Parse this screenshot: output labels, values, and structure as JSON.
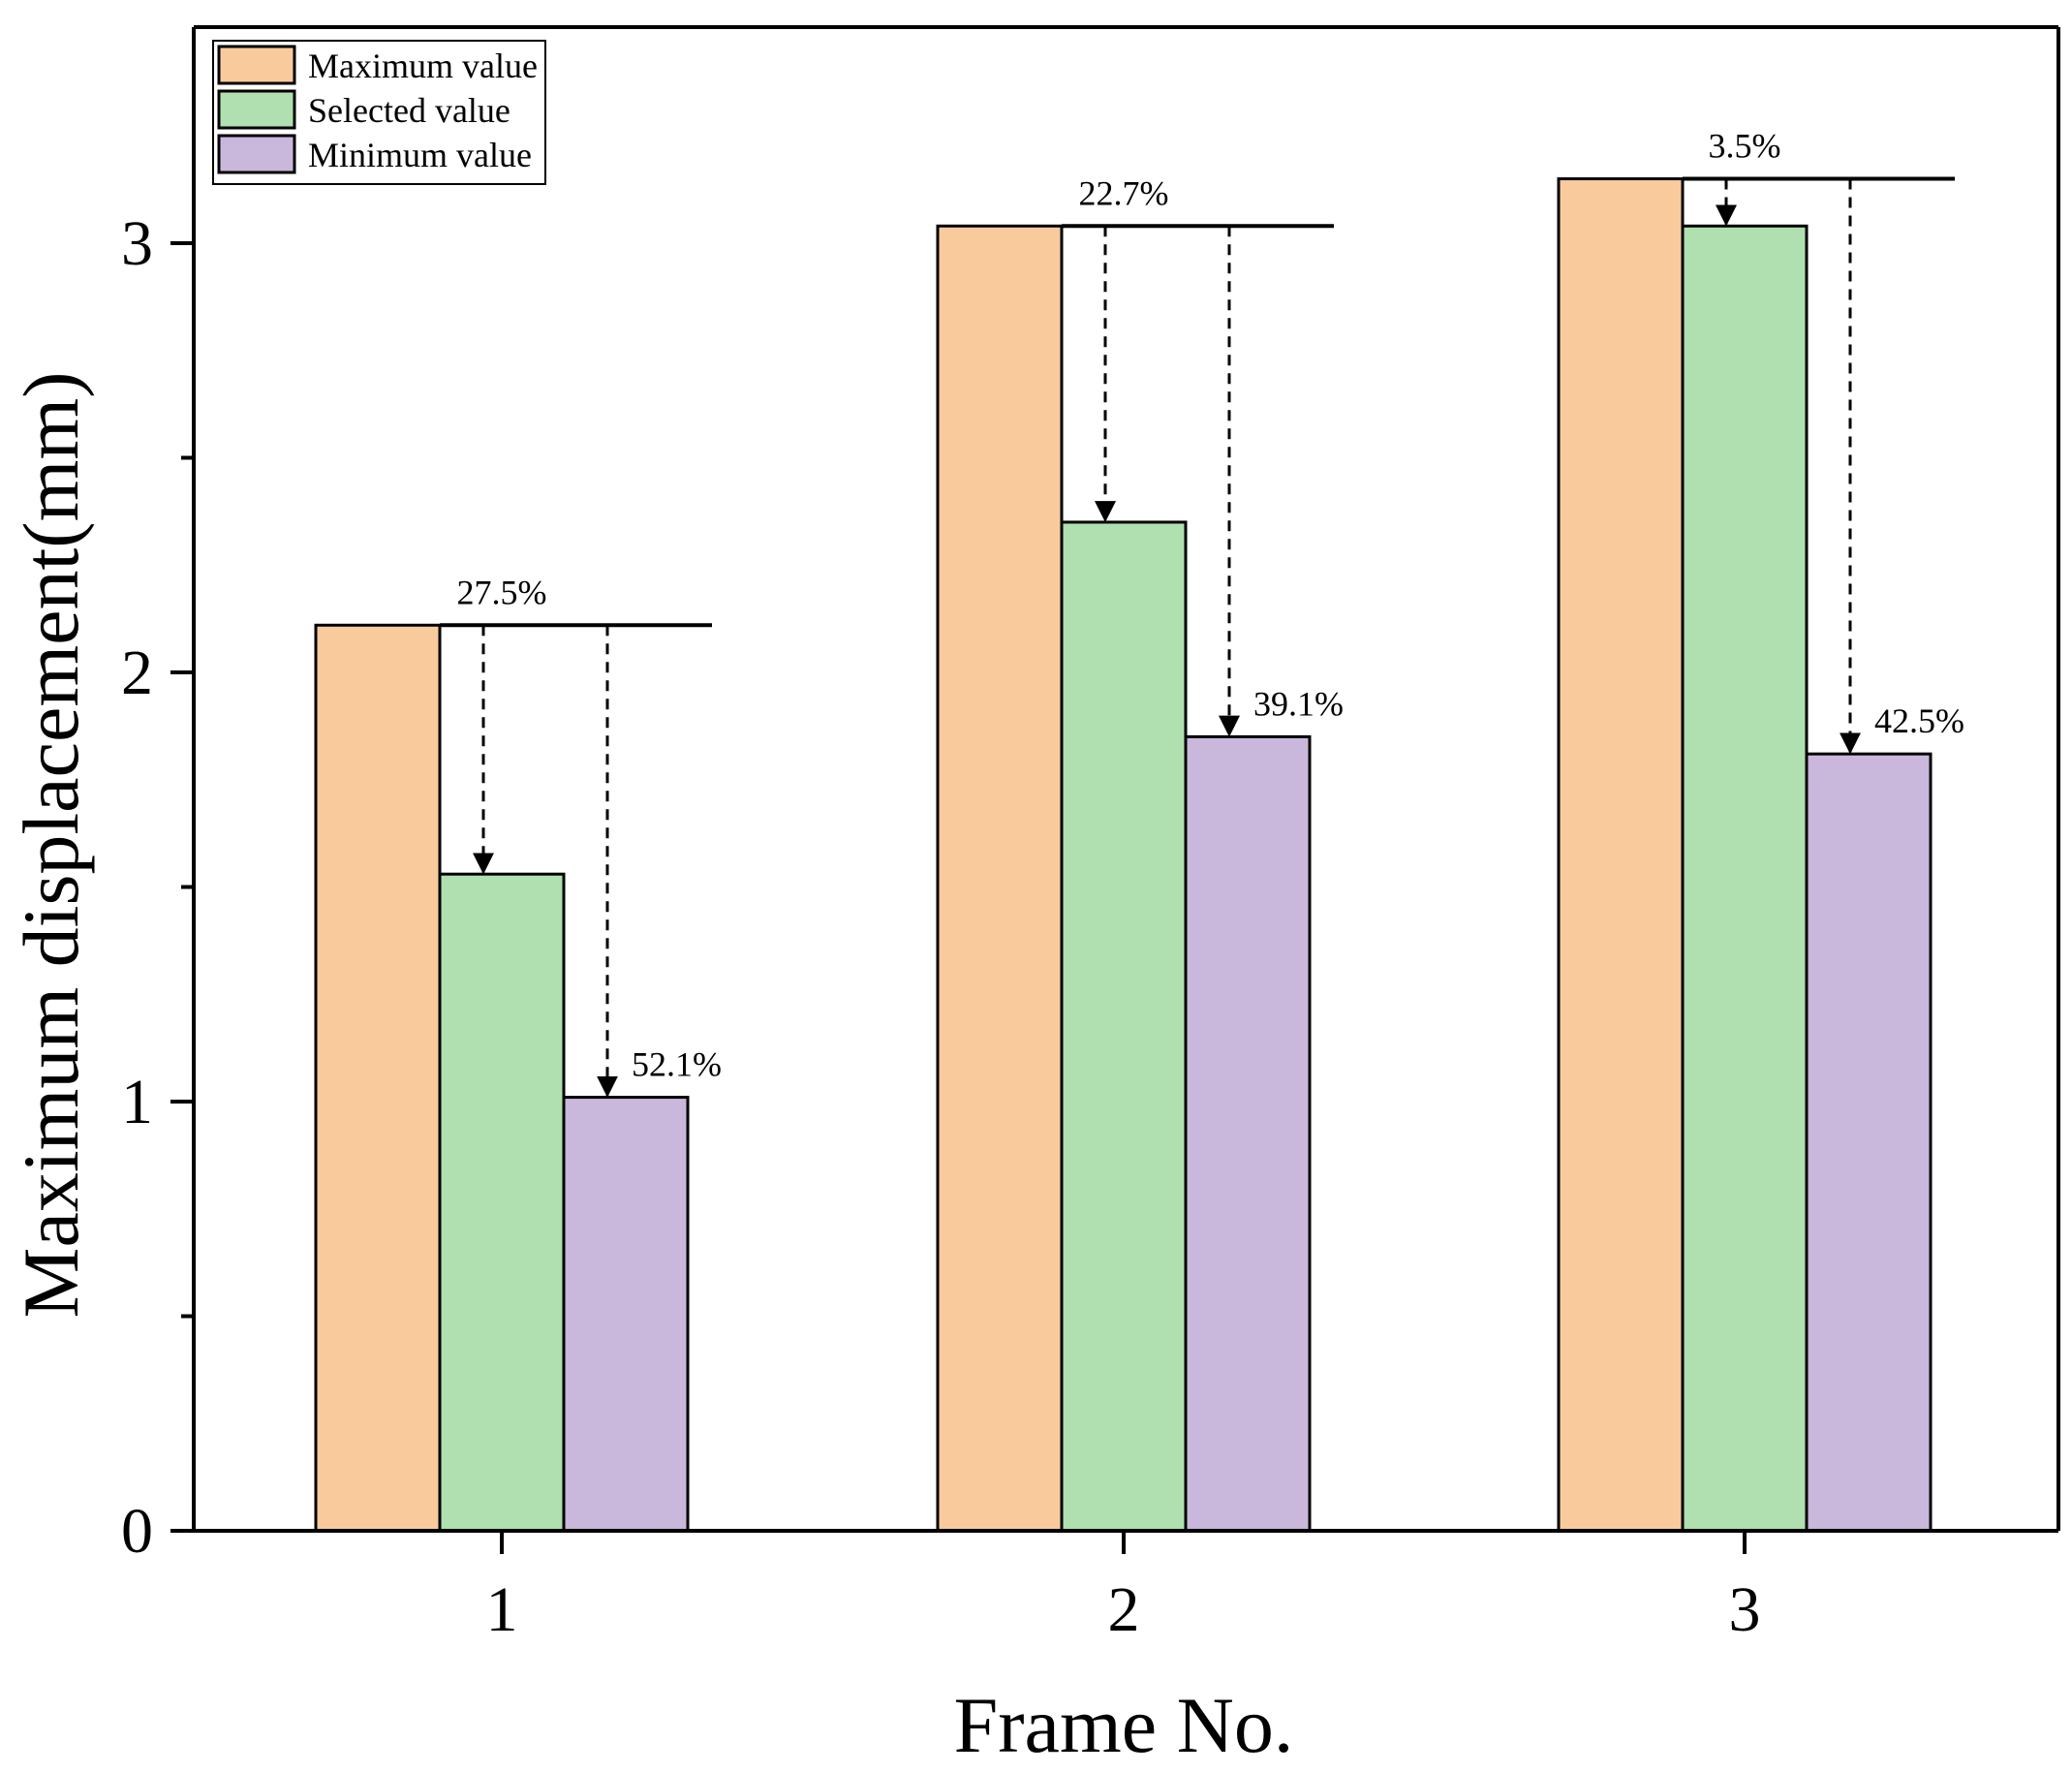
{
  "chart_data": {
    "type": "bar",
    "title": "",
    "xlabel": "Frame No.",
    "ylabel": "Maximum displacement(mm)",
    "categories": [
      "1",
      "2",
      "3"
    ],
    "ylim": [
      0,
      3.5
    ],
    "yticks": [
      "0",
      "1",
      "2",
      "3"
    ],
    "grid": false,
    "legend_position": "top-left",
    "series": [
      {
        "name": "Maximum value",
        "color": "#F9CB9C",
        "values": [
          2.11,
          3.04,
          3.15
        ]
      },
      {
        "name": "Selected value",
        "color": "#B0DFB0",
        "values": [
          1.53,
          2.35,
          3.04
        ]
      },
      {
        "name": "Minimum value",
        "color": "#C9B8DC",
        "values": [
          1.01,
          1.85,
          1.81
        ]
      }
    ],
    "annotations": [
      {
        "category": "1",
        "target_series": "Selected value",
        "label": "27.5%"
      },
      {
        "category": "1",
        "target_series": "Minimum value",
        "label": "52.1%"
      },
      {
        "category": "2",
        "target_series": "Selected value",
        "label": "22.7%"
      },
      {
        "category": "2",
        "target_series": "Minimum value",
        "label": "39.1%"
      },
      {
        "category": "3",
        "target_series": "Selected value",
        "label": "3.5%"
      },
      {
        "category": "3",
        "target_series": "Minimum value",
        "label": "42.5%"
      }
    ]
  }
}
